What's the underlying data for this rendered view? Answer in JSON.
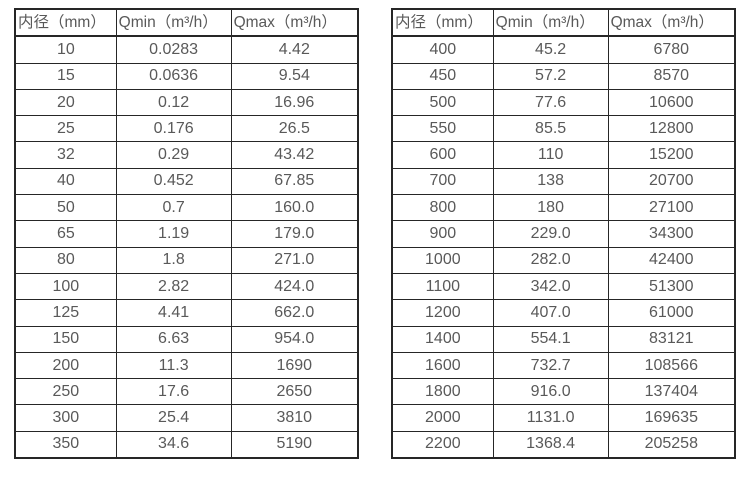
{
  "colors": {
    "border": "#262626",
    "text": "#595959",
    "background": "#ffffff"
  },
  "tables": [
    {
      "name": "small-diameters",
      "headers": [
        "内径（mm）",
        "Qmin（m³/h）",
        "Qmax（m³/h）"
      ],
      "rows": [
        [
          "10",
          "0.0283",
          "4.42"
        ],
        [
          "15",
          "0.0636",
          "9.54"
        ],
        [
          "20",
          "0.12",
          "16.96"
        ],
        [
          "25",
          "0.176",
          "26.5"
        ],
        [
          "32",
          "0.29",
          "43.42"
        ],
        [
          "40",
          "0.452",
          "67.85"
        ],
        [
          "50",
          "0.7",
          "160.0"
        ],
        [
          "65",
          "1.19",
          "179.0"
        ],
        [
          "80",
          "1.8",
          "271.0"
        ],
        [
          "100",
          "2.82",
          "424.0"
        ],
        [
          "125",
          "4.41",
          "662.0"
        ],
        [
          "150",
          "6.63",
          "954.0"
        ],
        [
          "200",
          "11.3",
          "1690"
        ],
        [
          "250",
          "17.6",
          "2650"
        ],
        [
          "300",
          "25.4",
          "3810"
        ],
        [
          "350",
          "34.6",
          "5190"
        ]
      ]
    },
    {
      "name": "large-diameters",
      "headers": [
        "内径（mm）",
        "Qmin（m³/h）",
        "Qmax（m³/h）"
      ],
      "rows": [
        [
          "400",
          "45.2",
          "6780"
        ],
        [
          "450",
          "57.2",
          "8570"
        ],
        [
          "500",
          "77.6",
          "10600"
        ],
        [
          "550",
          "85.5",
          "12800"
        ],
        [
          "600",
          "110",
          "15200"
        ],
        [
          "700",
          "138",
          "20700"
        ],
        [
          "800",
          "180",
          "27100"
        ],
        [
          "900",
          "229.0",
          "34300"
        ],
        [
          "1000",
          "282.0",
          "42400"
        ],
        [
          "1100",
          "342.0",
          "51300"
        ],
        [
          "1200",
          "407.0",
          "61000"
        ],
        [
          "1400",
          "554.1",
          "83121"
        ],
        [
          "1600",
          "732.7",
          "108566"
        ],
        [
          "1800",
          "916.0",
          "137404"
        ],
        [
          "2000",
          "1131.0",
          "169635"
        ],
        [
          "2200",
          "1368.4",
          "205258"
        ]
      ]
    }
  ]
}
